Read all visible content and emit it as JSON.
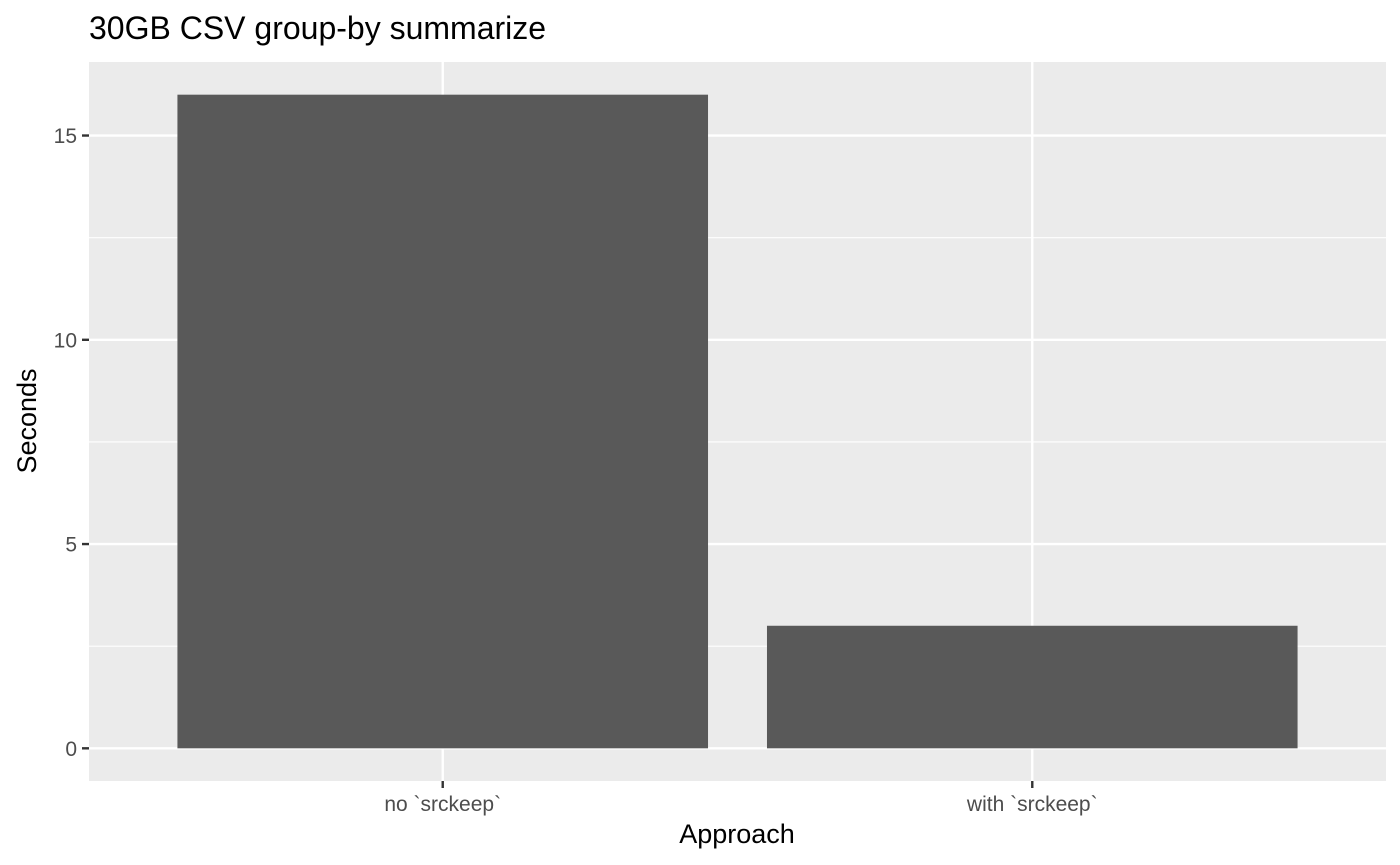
{
  "chart_data": {
    "type": "bar",
    "title": "30GB CSV group-by summarize",
    "xlabel": "Approach",
    "ylabel": "Seconds",
    "categories": [
      "no `srckeep`",
      "with `srckeep`"
    ],
    "values": [
      16,
      3
    ],
    "ylim": [
      -0.8,
      16.8
    ],
    "yticks": [
      0,
      5,
      10,
      15
    ],
    "y_minor_gridlines": [
      2.5,
      7.5,
      12.5
    ],
    "grid": true,
    "legend": "none",
    "bar_color": "#595959",
    "panel_background": "#ebebeb",
    "grid_color": "#ffffff"
  }
}
